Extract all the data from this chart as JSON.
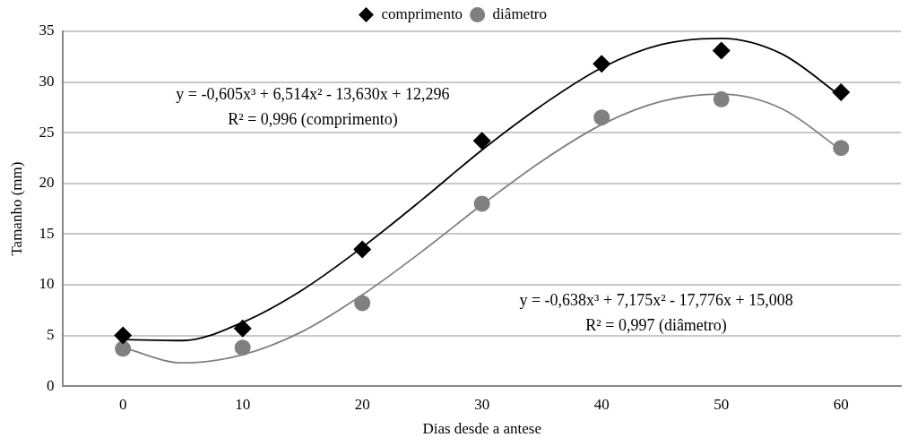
{
  "chart_data": {
    "type": "scatter",
    "xlabel": "Dias desde a antese",
    "ylabel": "Tamanho (mm)",
    "xlim": [
      -5,
      65
    ],
    "xticks": [
      0,
      10,
      20,
      30,
      40,
      50,
      60
    ],
    "ylim": [
      0,
      35
    ],
    "yticks": [
      0,
      5,
      10,
      15,
      20,
      25,
      30,
      35
    ],
    "grid": "y",
    "legend": "top",
    "series": [
      {
        "name": "comprimento",
        "type": "scatter",
        "marker": "diamond",
        "color": "#000000",
        "x": [
          0,
          10,
          20,
          30,
          40,
          50,
          60
        ],
        "values": [
          5.0,
          5.7,
          13.5,
          24.2,
          31.8,
          33.1,
          29.0
        ]
      },
      {
        "name": "diâmetro",
        "type": "scatter",
        "marker": "circle",
        "color": "#808080",
        "x": [
          0,
          10,
          20,
          30,
          40,
          50,
          60
        ],
        "values": [
          3.7,
          3.8,
          8.2,
          18.0,
          26.5,
          28.3,
          23.5
        ]
      },
      {
        "type": "line",
        "color": "#000000",
        "marker": "none",
        "x": [
          0,
          5,
          10,
          15,
          20,
          25,
          30,
          35,
          40,
          45,
          50,
          55,
          60
        ],
        "values": [
          4.6,
          4.5,
          6.3,
          9.5,
          13.7,
          18.4,
          23.3,
          27.7,
          31.4,
          33.7,
          34.3,
          32.8,
          28.6
        ]
      },
      {
        "type": "line",
        "color": "#808080",
        "marker": "none",
        "x": [
          0,
          5,
          10,
          15,
          20,
          25,
          30,
          35,
          40,
          45,
          50,
          55,
          60
        ],
        "values": [
          3.8,
          2.3,
          3.1,
          5.4,
          9.0,
          13.3,
          17.9,
          22.2,
          25.8,
          28.1,
          28.8,
          27.4,
          23.3
        ]
      }
    ],
    "annotations": [
      "y = -0,605x³ + 6,514x² - 13,630x + 12,296",
      "R² = 0,996 (comprimento)",
      "y = -0,638x³ + 7,175x² - 17,776x + 15,008",
      "R² = 0,997 (diâmetro)"
    ]
  }
}
